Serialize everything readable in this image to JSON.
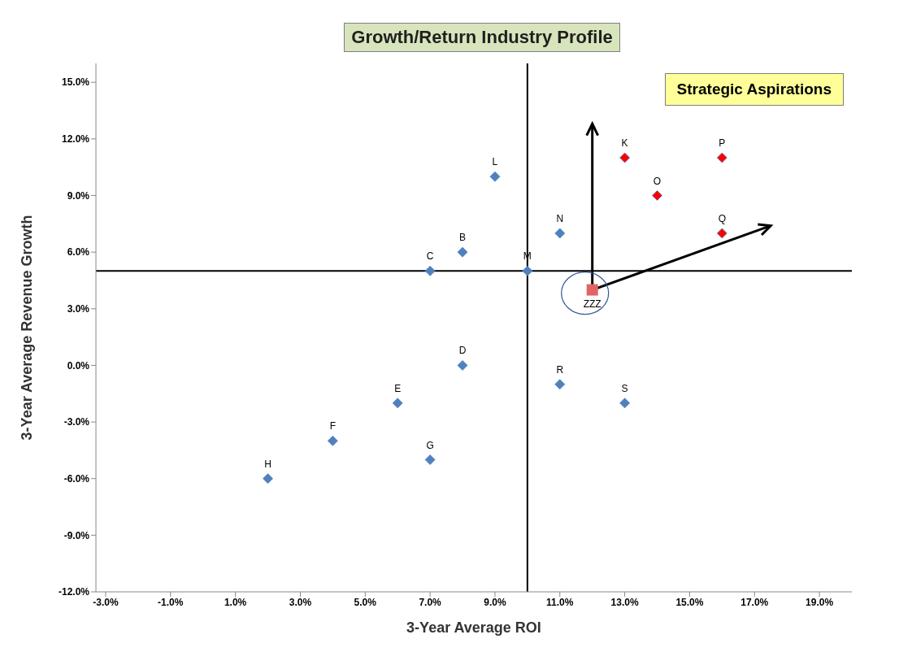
{
  "chart_data": {
    "type": "scatter",
    "title": "Growth/Return Industry Profile",
    "xlabel": "3-Year Average ROI",
    "ylabel": "3-Year Average  Revenue Growth",
    "xlim": [
      -3.3,
      20
    ],
    "ylim": [
      -12,
      16
    ],
    "xticks": [
      {
        "value": -3,
        "label": "-3.0%"
      },
      {
        "value": -1,
        "label": "-1.0%"
      },
      {
        "value": 1,
        "label": "1.0%"
      },
      {
        "value": 3,
        "label": "3.0%"
      },
      {
        "value": 5,
        "label": "5.0%"
      },
      {
        "value": 7,
        "label": "7.0%"
      },
      {
        "value": 9,
        "label": "9.0%"
      },
      {
        "value": 11,
        "label": "11.0%"
      },
      {
        "value": 13,
        "label": "13.0%"
      },
      {
        "value": 15,
        "label": "15.0%"
      },
      {
        "value": 17,
        "label": "17.0%"
      },
      {
        "value": 19,
        "label": "19.0%"
      }
    ],
    "yticks": [
      {
        "value": -12,
        "label": "-12.0%"
      },
      {
        "value": -9,
        "label": "-9.0%"
      },
      {
        "value": -6,
        "label": "-6.0%"
      },
      {
        "value": -3,
        "label": "-3.0%"
      },
      {
        "value": 0,
        "label": "0.0%"
      },
      {
        "value": 3,
        "label": "3.0%"
      },
      {
        "value": 6,
        "label": "6.0%"
      },
      {
        "value": 9,
        "label": "9.0%"
      },
      {
        "value": 12,
        "label": "12.0%"
      },
      {
        "value": 15,
        "label": "15.0%"
      }
    ],
    "legend": false,
    "series": [
      {
        "color": "#4f81bd",
        "marker": "diamond",
        "x": [
          8,
          7,
          8,
          6,
          4,
          7,
          2,
          9,
          10,
          11,
          11,
          13
        ],
        "values": [
          6,
          5,
          0,
          -2,
          -4,
          -5,
          -6,
          10,
          5,
          7,
          -1,
          -2
        ]
      },
      {
        "color": "#ff0000",
        "marker": "diamond",
        "x": [
          13,
          14,
          16,
          16
        ],
        "values": [
          11,
          9,
          11,
          7
        ]
      },
      {
        "name": "ZZZ",
        "color": "#e06666",
        "marker": "square",
        "x": [
          12
        ],
        "values": [
          4
        ]
      }
    ],
    "ref_lines": [
      {
        "axis": "x",
        "value": 10,
        "color": "#000000"
      },
      {
        "axis": "y",
        "value": 5,
        "color": "#000000"
      }
    ],
    "annotations": [
      "Strategic Aspirations",
      {
        "text": "B",
        "x": 8,
        "y": 6
      },
      {
        "text": "C",
        "x": 7,
        "y": 5
      },
      {
        "text": "D",
        "x": 8,
        "y": 0
      },
      {
        "text": "E",
        "x": 6,
        "y": -2
      },
      {
        "text": "F",
        "x": 4,
        "y": -4
      },
      {
        "text": "G",
        "x": 7,
        "y": -5
      },
      {
        "text": "H",
        "x": 2,
        "y": -6
      },
      {
        "text": "L",
        "x": 9,
        "y": 10
      },
      {
        "text": "M",
        "x": 10,
        "y": 5
      },
      {
        "text": "N",
        "x": 11,
        "y": 7
      },
      {
        "text": "R",
        "x": 11,
        "y": -1
      },
      {
        "text": "S",
        "x": 13,
        "y": -2
      },
      {
        "text": "K",
        "x": 13,
        "y": 11
      },
      {
        "text": "O",
        "x": 14,
        "y": 9
      },
      {
        "text": "P",
        "x": 16,
        "y": 11
      },
      {
        "text": "Q",
        "x": 16,
        "y": 7
      }
    ]
  }
}
